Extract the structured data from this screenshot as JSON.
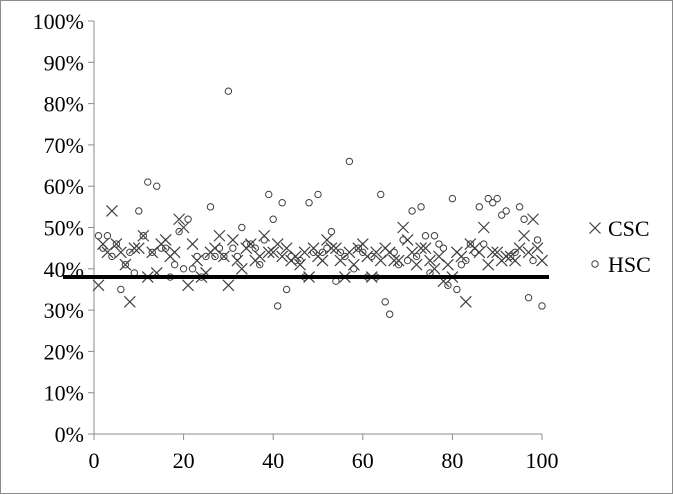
{
  "chart_data": {
    "type": "scatter",
    "xlim": [
      0,
      100
    ],
    "ylim": [
      0,
      100
    ],
    "x_ticks": [
      "0",
      "20",
      "40",
      "60",
      "80",
      "100"
    ],
    "y_ticks": [
      "0%",
      "10%",
      "20%",
      "30%",
      "40%",
      "50%",
      "60%",
      "70%",
      "80%",
      "90%",
      "100%"
    ],
    "grid": false,
    "legend_position": "right",
    "reference_line": {
      "y": 38
    },
    "series": [
      {
        "name": "CSC",
        "marker": "x",
        "x": [
          1,
          2,
          4,
          6,
          8,
          10,
          12,
          14,
          16,
          18,
          19,
          21,
          22,
          24,
          26,
          28,
          30,
          32,
          33,
          34,
          36,
          38,
          40,
          42,
          44,
          46,
          48,
          50,
          52,
          54,
          56,
          58,
          60,
          62,
          64,
          66,
          68,
          70,
          72,
          74,
          76,
          78,
          80,
          82,
          84,
          86,
          88,
          90,
          92,
          94,
          96,
          98,
          99,
          100,
          3,
          5,
          7,
          9,
          11,
          13,
          15,
          17,
          20,
          23,
          25,
          27,
          29,
          31,
          35,
          37,
          39,
          41,
          43,
          45,
          47,
          49,
          51,
          53,
          55,
          57,
          59,
          61,
          63,
          65,
          67,
          69,
          71,
          73,
          75,
          77,
          79,
          81,
          83,
          85,
          87,
          89,
          91,
          93,
          95,
          97
        ],
        "y": [
          36,
          46,
          54,
          44,
          32,
          45,
          38,
          39,
          47,
          44,
          52,
          36,
          46,
          38,
          44,
          48,
          36,
          42,
          40,
          45,
          42,
          48,
          44,
          43,
          42,
          41,
          38,
          43,
          47,
          45,
          38,
          41,
          46,
          38,
          42,
          44,
          42,
          47,
          41,
          45,
          40,
          37,
          38,
          43,
          46,
          44,
          41,
          44,
          43,
          42,
          48,
          52,
          45,
          42,
          44,
          46,
          41,
          45,
          48,
          44,
          46,
          43,
          50,
          42,
          39,
          45,
          43,
          47,
          46,
          43,
          44,
          46,
          45,
          43,
          44,
          45,
          42,
          45,
          42,
          44,
          45,
          43,
          44,
          45,
          42,
          50,
          44,
          45,
          42,
          43,
          41,
          44,
          32,
          45,
          50,
          44,
          42,
          43,
          45,
          44
        ]
      },
      {
        "name": "HSC",
        "marker": "o",
        "x": [
          1,
          2,
          3,
          4,
          5,
          6,
          7,
          8,
          9,
          10,
          11,
          12,
          13,
          14,
          15,
          16,
          17,
          18,
          19,
          20,
          21,
          22,
          23,
          24,
          25,
          26,
          27,
          28,
          29,
          30,
          31,
          32,
          33,
          34,
          35,
          36,
          37,
          38,
          39,
          40,
          41,
          42,
          43,
          44,
          45,
          46,
          47,
          48,
          49,
          50,
          51,
          52,
          53,
          54,
          55,
          56,
          57,
          58,
          59,
          60,
          61,
          62,
          63,
          64,
          65,
          66,
          67,
          68,
          69,
          70,
          71,
          72,
          73,
          74,
          75,
          76,
          77,
          78,
          79,
          80,
          81,
          82,
          83,
          84,
          85,
          86,
          87,
          88,
          89,
          90,
          91,
          92,
          93,
          94,
          95,
          96,
          97,
          98,
          99,
          100
        ],
        "y": [
          48,
          45,
          48,
          43,
          46,
          35,
          41,
          44,
          39,
          54,
          48,
          61,
          44,
          60,
          45,
          45,
          38,
          41,
          49,
          40,
          52,
          40,
          43,
          38,
          43,
          55,
          43,
          45,
          43,
          83,
          45,
          43,
          50,
          46,
          46,
          45,
          41,
          47,
          58,
          52,
          31,
          56,
          35,
          43,
          42,
          42,
          38,
          56,
          44,
          58,
          44,
          45,
          49,
          37,
          44,
          43,
          66,
          40,
          45,
          44,
          38,
          43,
          38,
          58,
          32,
          29,
          44,
          41,
          47,
          42,
          54,
          43,
          55,
          48,
          39,
          48,
          46,
          45,
          36,
          57,
          35,
          41,
          42,
          46,
          44,
          55,
          46,
          57,
          56,
          57,
          53,
          54,
          43,
          44,
          55,
          52,
          33,
          42,
          47,
          31
        ]
      }
    ]
  }
}
